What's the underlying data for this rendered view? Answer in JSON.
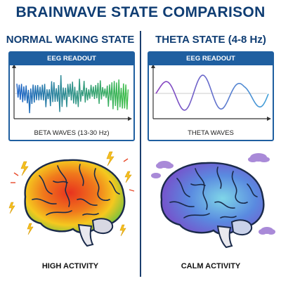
{
  "title": "BRAINWAVE STATE COMPARISON",
  "left": {
    "heading": "NORMAL WAKING STATE",
    "panel_header": "EEG READOUT",
    "wave_name": "BETA WAVES",
    "wave_range": "(13-30 Hz)",
    "activity": "HIGH ACTIVITY",
    "wave_color_start": "#1e64c8",
    "wave_color_end": "#3fbf4a"
  },
  "right": {
    "heading": "THETA STATE (4-8 Hz)",
    "panel_header": "EEG READOUT",
    "wave_name": "THETA WAVES",
    "activity": "CALM ACTIVITY",
    "wave_color_start": "#8a3fc0",
    "wave_color_end": "#3fa0d8"
  },
  "icons": {
    "left_brain": "brain-heatmap-icon",
    "right_brain": "brain-calm-icon",
    "sparks": "lightning-bolt-icon",
    "clouds": "cloud-icon"
  }
}
